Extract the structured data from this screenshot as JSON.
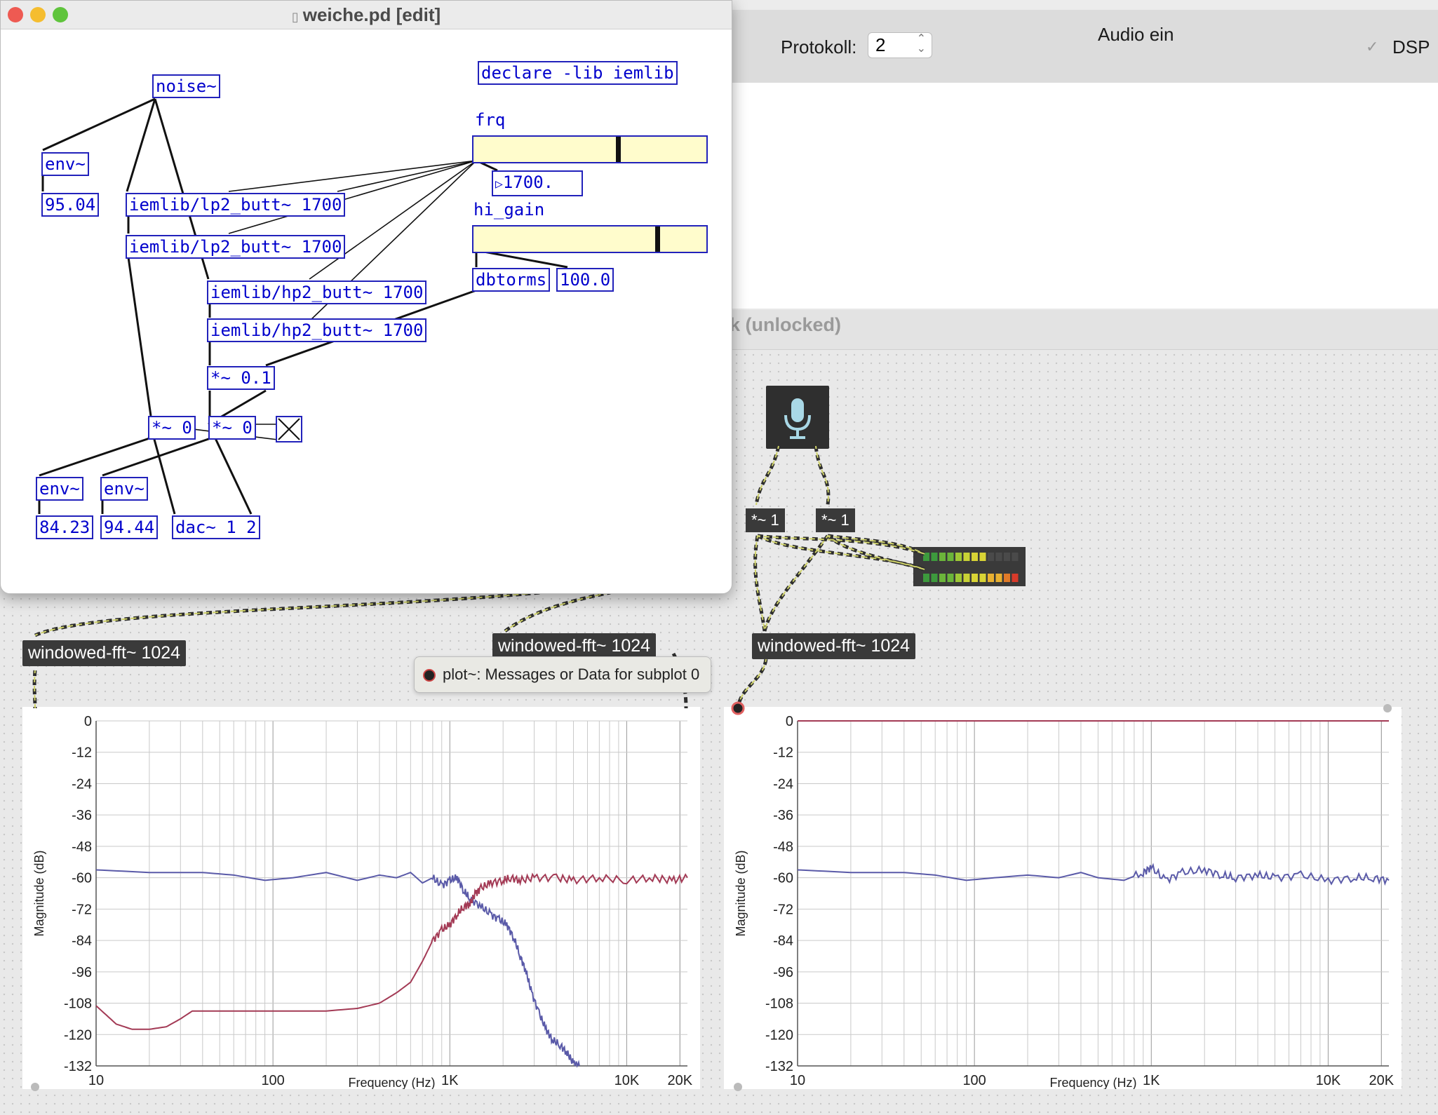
{
  "main_window": {
    "protocol_label": "Protokoll:",
    "protocol_value": "2",
    "audio_label": "Audio ein",
    "dsp_label": "DSP",
    "dsp_checked": true
  },
  "unlocked_window": {
    "title_fragment": "k (unlocked)"
  },
  "edit_window": {
    "title": "weiche.pd [edit]",
    "objects": {
      "noise": "noise~",
      "declare": "declare -lib iemlib",
      "env1": "env~",
      "lp1": "iemlib/lp2_butt~ 1700",
      "lp2": "iemlib/lp2_butt~ 1700",
      "hp1": "iemlib/hp2_butt~ 1700",
      "hp2": "iemlib/hp2_butt~ 1700",
      "dbtorms": "dbtorms",
      "mul01": "*~ 0.1",
      "mul0a": "*~ 0",
      "mul0b": "*~ 0",
      "env2": "env~",
      "env3": "env~",
      "dac": "dac~ 1 2"
    },
    "numbers": {
      "env1_val": "95.04",
      "frq_val": "1700.",
      "hi_gain_val": "100.0",
      "env2_val": "84.23",
      "env3_val": "94.44"
    },
    "labels": {
      "frq": "frq",
      "hi_gain": "hi_gain"
    },
    "sliders": {
      "frq_level": 0.61,
      "hi_gain_level": 0.78
    }
  },
  "dark_objects": {
    "mul1a": "*~ 1",
    "mul1b": "*~ 1",
    "fft_left": "windowed-fft~ 1024",
    "fft_mid": "windowed-fft~ 1024",
    "fft_right": "windowed-fft~ 1024",
    "mic_icon": "microphone-icon"
  },
  "tooltip": {
    "text": "plot~: Messages or Data for subplot 0"
  },
  "colors": {
    "series_blue": "#5a5aa8",
    "series_red": "#a33a55",
    "pd_blue": "#0000cc",
    "slider_bg": "#fffccc"
  },
  "chart_data": [
    {
      "type": "line",
      "xlabel": "Frequency (Hz)",
      "ylabel": "Magnitude (dB)",
      "xscale": "log",
      "xlim": [
        10,
        22050
      ],
      "ylim": [
        -132,
        0
      ],
      "y_ticks": [
        "0",
        "-12",
        "-24",
        "-36",
        "-48",
        "-60",
        "-72",
        "-84",
        "-96",
        "-108",
        "-120",
        "-132"
      ],
      "x_ticks": [
        "10",
        "100",
        "1K",
        "10K",
        "20K"
      ],
      "x_tick_values": [
        10,
        100,
        1000,
        10000,
        20000
      ],
      "series": [
        {
          "color": "#5a5aa8",
          "x": [
            10,
            20,
            40,
            60,
            90,
            130,
            200,
            300,
            400,
            500,
            600,
            700,
            800,
            900,
            1000,
            1100,
            1200,
            1300,
            1500,
            1700,
            1900,
            2100,
            2300,
            2500,
            2700,
            2900,
            3200,
            3500,
            3800,
            4200,
            4600,
            5000,
            5400
          ],
          "y": [
            -57,
            -58,
            -58,
            -59,
            -61,
            -60,
            -58,
            -61,
            -59,
            -60,
            -58,
            -62,
            -60,
            -63,
            -61,
            -60,
            -65,
            -68,
            -71,
            -74,
            -76,
            -78,
            -83,
            -90,
            -96,
            -104,
            -112,
            -118,
            -122,
            -124,
            -127,
            -131,
            -132
          ]
        },
        {
          "color": "#a33a55",
          "x": [
            10,
            13,
            16,
            20,
            25,
            30,
            35,
            40,
            50,
            60,
            80,
            100,
            150,
            200,
            300,
            400,
            500,
            600,
            700,
            800,
            900,
            1000,
            1100,
            1200,
            1300,
            1400,
            1500,
            1700,
            2000,
            2200,
            2500,
            3000,
            4000,
            5000,
            7000,
            10000,
            14000,
            18000,
            22050
          ],
          "y": [
            -109,
            -116,
            -118,
            -118,
            -117,
            -114,
            -111,
            -111,
            -111,
            -111,
            -111,
            -111,
            -111,
            -111,
            -110,
            -108,
            -104,
            -100,
            -92,
            -84,
            -80,
            -78,
            -74,
            -71,
            -70,
            -66,
            -64,
            -62,
            -61,
            -60,
            -61,
            -60,
            -60,
            -61,
            -60,
            -61,
            -60,
            -61,
            -60
          ]
        }
      ]
    },
    {
      "type": "line",
      "xlabel": "Frequency (Hz)",
      "ylabel": "Magnitude (dB)",
      "xscale": "log",
      "xlim": [
        10,
        22050
      ],
      "ylim": [
        -132,
        0
      ],
      "y_ticks": [
        "0",
        "-12",
        "-24",
        "-36",
        "-48",
        "-60",
        "-72",
        "-84",
        "-96",
        "-108",
        "-120",
        "-132"
      ],
      "x_ticks": [
        "10",
        "100",
        "1K",
        "10K",
        "20K"
      ],
      "x_tick_values": [
        10,
        100,
        1000,
        10000,
        20000
      ],
      "series": [
        {
          "color": "#a33a55",
          "x": [
            10,
            22050
          ],
          "y": [
            0,
            0
          ]
        },
        {
          "color": "#5a5aa8",
          "x": [
            10,
            20,
            40,
            60,
            90,
            130,
            200,
            300,
            400,
            500,
            700,
            900,
            1000,
            1200,
            1500,
            2000,
            2500,
            3000,
            4000,
            5000,
            7000,
            10000,
            14000,
            18000,
            22050
          ],
          "y": [
            -57,
            -58,
            -58,
            -59,
            -61,
            -60,
            -59,
            -60,
            -58,
            -60,
            -61,
            -58,
            -56,
            -61,
            -58,
            -57,
            -59,
            -60,
            -59,
            -60,
            -59,
            -61,
            -60,
            -60,
            -61
          ]
        }
      ]
    }
  ]
}
